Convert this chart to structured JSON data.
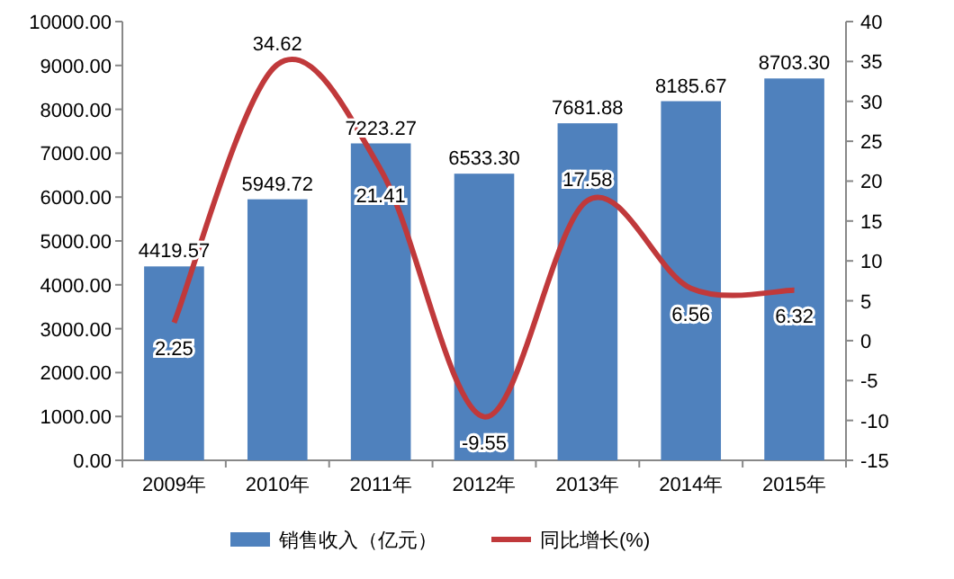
{
  "chart_data": {
    "type": "bar",
    "categories": [
      "2009年",
      "2010年",
      "2011年",
      "2012年",
      "2013年",
      "2014年",
      "2015年"
    ],
    "series": [
      {
        "name": "销售收入（亿元）",
        "color": "#4f81bd",
        "values": [
          4419.57,
          5949.72,
          7223.27,
          6533.3,
          7681.88,
          8185.67,
          8703.3
        ],
        "value_labels": [
          "4419.57",
          "5949.72",
          "7223.27",
          "6533.30",
          "7681.88",
          "8185.67",
          "8703.30"
        ]
      },
      {
        "name": "同比增长(%)",
        "type": "line",
        "axis": "y2",
        "color": "#c0393b",
        "line_style": "solid",
        "marker": "none",
        "values": [
          2.25,
          34.62,
          21.41,
          -9.55,
          17.58,
          6.56,
          6.32
        ],
        "value_labels": [
          "2.25",
          "34.62",
          "21.41",
          "-9.55",
          "17.58",
          "6.56",
          "6.32"
        ]
      }
    ],
    "ylim": [
      0,
      10000
    ],
    "yticks": [
      {
        "value": 0,
        "label": "0.00"
      },
      {
        "value": 1000,
        "label": "1000.00"
      },
      {
        "value": 2000,
        "label": "2000.00"
      },
      {
        "value": 3000,
        "label": "3000.00"
      },
      {
        "value": 4000,
        "label": "4000.00"
      },
      {
        "value": 5000,
        "label": "5000.00"
      },
      {
        "value": 6000,
        "label": "6000.00"
      },
      {
        "value": 7000,
        "label": "7000.00"
      },
      {
        "value": 8000,
        "label": "8000.00"
      },
      {
        "value": 9000,
        "label": "9000.00"
      },
      {
        "value": 10000,
        "label": "10000.00"
      }
    ],
    "y2lim": [
      -15,
      40
    ],
    "y2ticks": [
      -15,
      -10,
      -5,
      0,
      5,
      10,
      15,
      20,
      25,
      30,
      35,
      40
    ],
    "grid": false,
    "legend": "bottom"
  }
}
